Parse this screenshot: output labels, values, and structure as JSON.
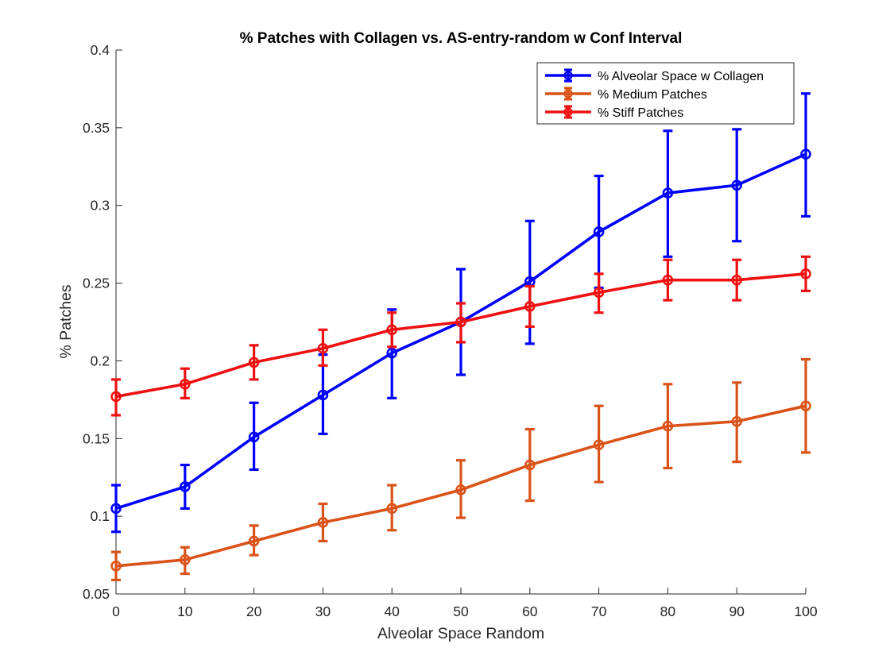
{
  "chart_data": {
    "type": "line",
    "title": "% Patches with Collagen vs. AS-entry-random w Conf Interval",
    "xlabel": "Alveolar Space Random",
    "ylabel": "% Patches",
    "xlim": [
      0,
      100
    ],
    "ylim": [
      0.05,
      0.4
    ],
    "x": [
      0,
      10,
      20,
      30,
      40,
      50,
      60,
      70,
      80,
      90,
      100
    ],
    "xticks": [
      "0",
      "10",
      "20",
      "30",
      "40",
      "50",
      "60",
      "70",
      "80",
      "90",
      "100"
    ],
    "yticks": [
      "0.05",
      "0.1",
      "0.15",
      "0.2",
      "0.25",
      "0.3",
      "0.35",
      "0.4"
    ],
    "grid": false,
    "legend_position": "top-right",
    "error_bars": true,
    "series": [
      {
        "name": "% Alveolar Space w Collagen",
        "color": "#0000ff",
        "values": [
          0.105,
          0.119,
          0.151,
          0.178,
          0.205,
          0.225,
          0.251,
          0.283,
          0.308,
          0.313,
          0.333
        ],
        "lower": [
          0.09,
          0.105,
          0.13,
          0.153,
          0.176,
          0.191,
          0.211,
          0.247,
          0.267,
          0.277,
          0.293
        ],
        "upper": [
          0.12,
          0.133,
          0.173,
          0.204,
          0.233,
          0.259,
          0.29,
          0.319,
          0.348,
          0.349,
          0.372
        ]
      },
      {
        "name": "% Medium Patches",
        "color": "#d95319",
        "values": [
          0.068,
          0.072,
          0.084,
          0.096,
          0.105,
          0.117,
          0.133,
          0.146,
          0.158,
          0.161,
          0.171
        ],
        "lower": [
          0.059,
          0.063,
          0.075,
          0.084,
          0.091,
          0.099,
          0.11,
          0.122,
          0.131,
          0.135,
          0.141
        ],
        "upper": [
          0.077,
          0.08,
          0.094,
          0.108,
          0.12,
          0.136,
          0.156,
          0.171,
          0.185,
          0.186,
          0.201
        ]
      },
      {
        "name": "% Stiff Patches",
        "color": "#ee1111",
        "values": [
          0.177,
          0.185,
          0.199,
          0.208,
          0.22,
          0.225,
          0.235,
          0.244,
          0.252,
          0.252,
          0.256
        ],
        "lower": [
          0.165,
          0.176,
          0.188,
          0.197,
          0.209,
          0.212,
          0.222,
          0.231,
          0.239,
          0.239,
          0.245
        ],
        "upper": [
          0.188,
          0.195,
          0.21,
          0.22,
          0.231,
          0.237,
          0.248,
          0.256,
          0.265,
          0.265,
          0.267
        ]
      }
    ]
  }
}
